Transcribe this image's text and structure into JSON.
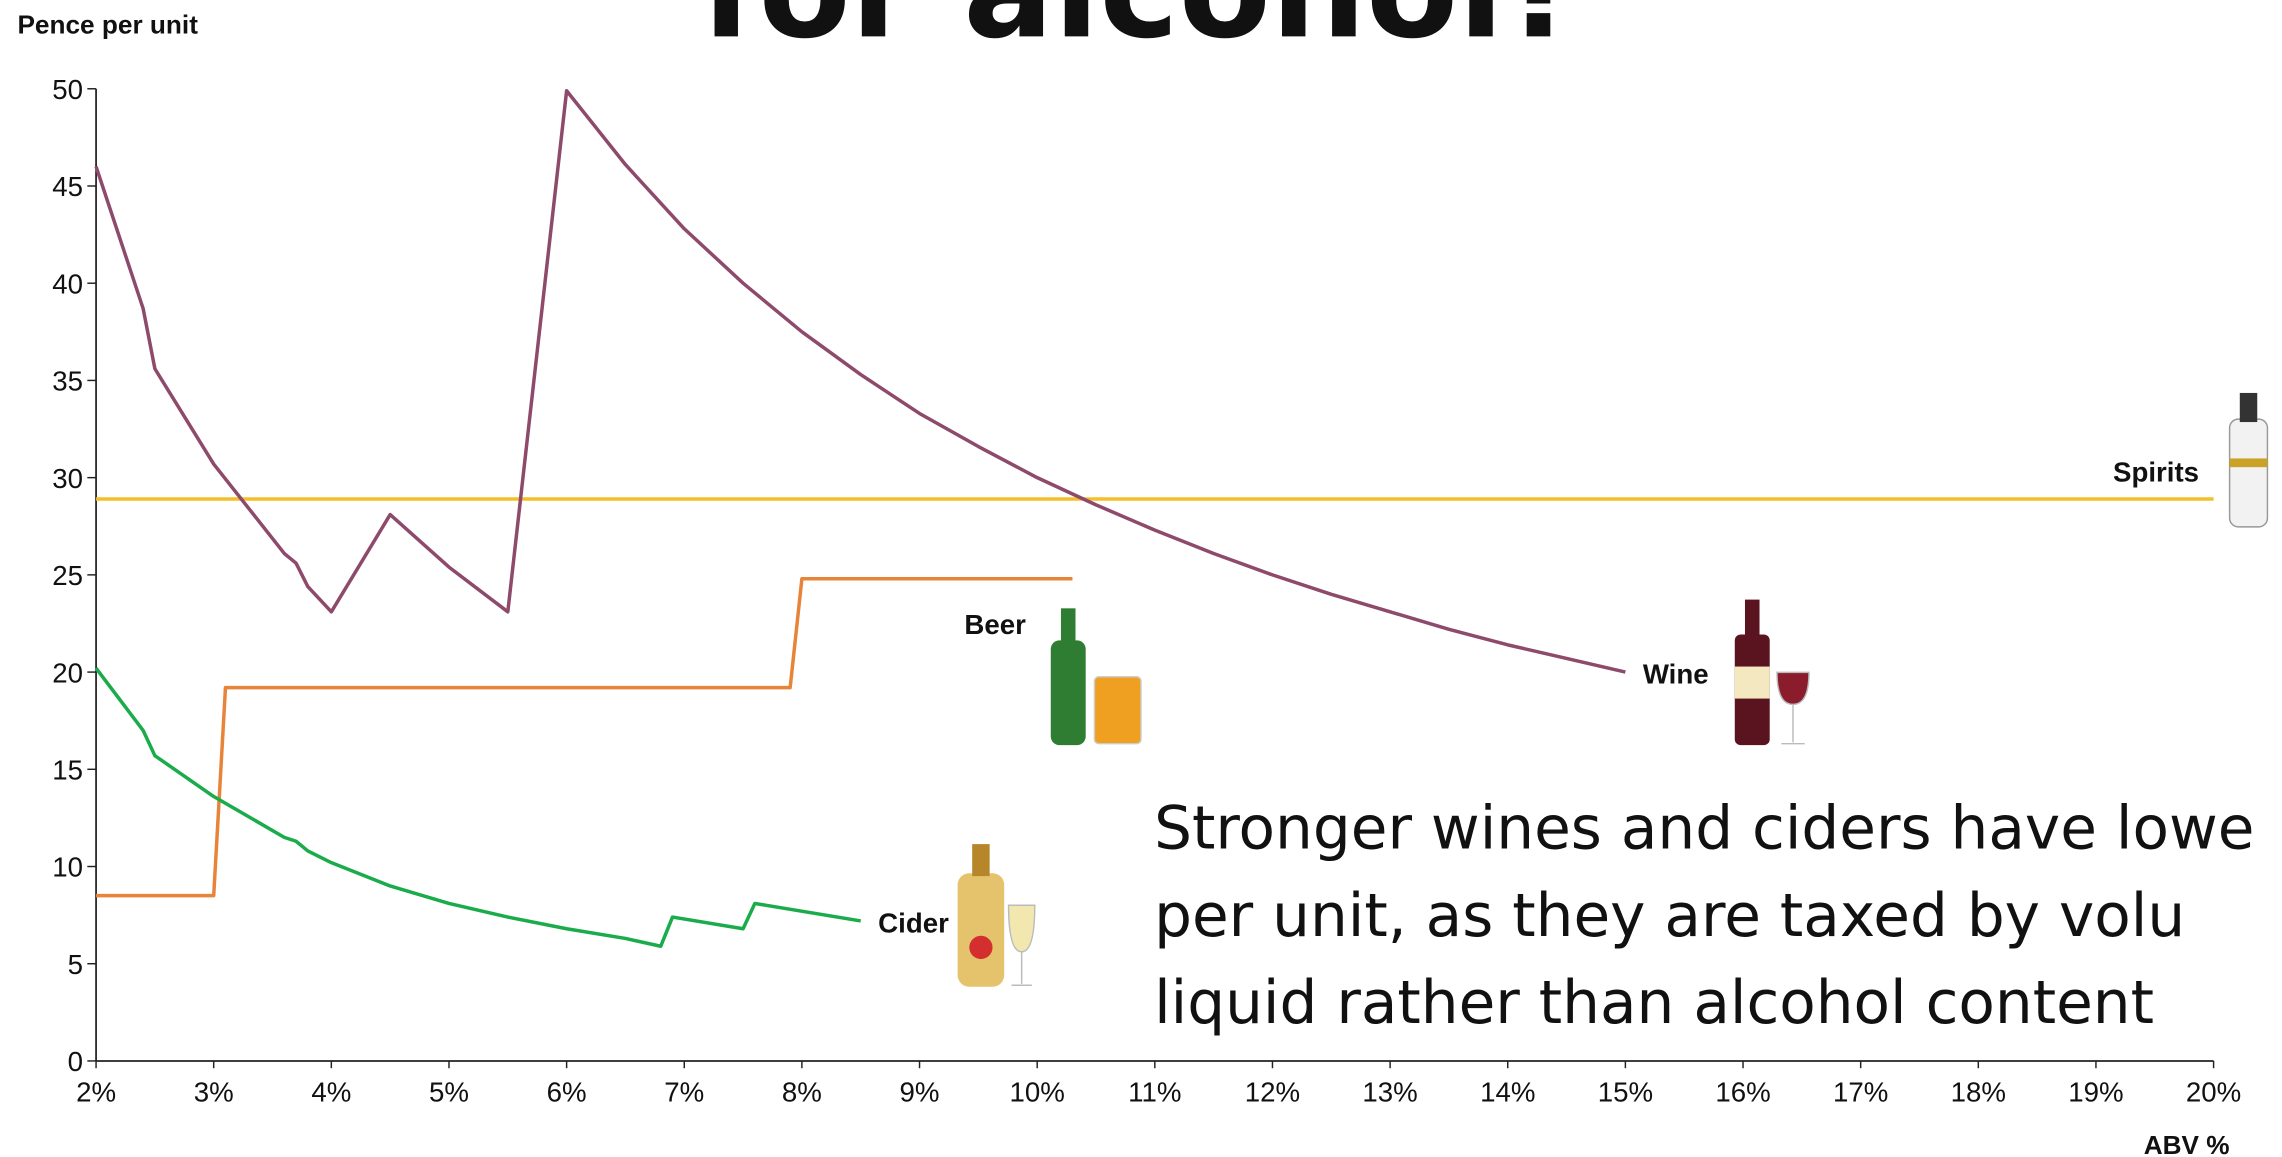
{
  "chart_data": {
    "type": "line",
    "title": "for alcohol?",
    "y_label": "Pence per unit",
    "x_label": "ABV %",
    "annotation": [
      "Stronger wines and ciders have lowe",
      "per unit, as they are taxed by volu",
      "liquid rather than alcohol content"
    ],
    "xlim": [
      2,
      20
    ],
    "ylim": [
      0,
      50
    ],
    "xticks": [
      {
        "value": 2,
        "label": "2%"
      },
      {
        "value": 3,
        "label": "3%"
      },
      {
        "value": 4,
        "label": "4%"
      },
      {
        "value": 5,
        "label": "5%"
      },
      {
        "value": 6,
        "label": "6%"
      },
      {
        "value": 7,
        "label": "7%"
      },
      {
        "value": 8,
        "label": "8%"
      },
      {
        "value": 9,
        "label": "9%"
      },
      {
        "value": 10,
        "label": "10%"
      },
      {
        "value": 11,
        "label": "11%"
      },
      {
        "value": 12,
        "label": "12%"
      },
      {
        "value": 13,
        "label": "13%"
      },
      {
        "value": 14,
        "label": "14%"
      },
      {
        "value": 15,
        "label": "15%"
      },
      {
        "value": 16,
        "label": "16%"
      },
      {
        "value": 17,
        "label": "17%"
      },
      {
        "value": 18,
        "label": "18%"
      },
      {
        "value": 19,
        "label": "19%"
      },
      {
        "value": 20,
        "label": "20%"
      }
    ],
    "yticks": [
      0,
      5,
      10,
      15,
      20,
      25,
      30,
      35,
      40,
      45,
      50
    ],
    "grid": false,
    "series": [
      {
        "name": "Spirits",
        "color": "#f4bf2a",
        "x": [
          2,
          20
        ],
        "values": [
          28.9,
          28.9
        ]
      },
      {
        "name": "Wine",
        "color": "#8e4a6b",
        "x": [
          2,
          2.4,
          2.5,
          3,
          3.6,
          3.7,
          3.8,
          4,
          4.5,
          5,
          5.5,
          6,
          6.5,
          7,
          7.5,
          8,
          8.5,
          9,
          9.5,
          10,
          10.5,
          11,
          11.5,
          12,
          12.5,
          13,
          13.5,
          14,
          14.5,
          15
        ],
        "values": [
          46,
          38.7,
          35.6,
          30.7,
          26.1,
          25.6,
          24.4,
          23.1,
          28.1,
          25.4,
          23.1,
          49.9,
          46.1,
          42.8,
          40,
          37.5,
          35.3,
          33.3,
          31.6,
          30,
          28.6,
          27.3,
          26.1,
          25,
          24,
          23.1,
          22.2,
          21.4,
          20.7,
          20
        ]
      },
      {
        "name": "Beer",
        "color": "#e8843a",
        "x": [
          2,
          3,
          3.1,
          7.9,
          8,
          10.3
        ],
        "values": [
          8.5,
          8.5,
          19.2,
          19.2,
          24.8,
          24.8
        ]
      },
      {
        "name": "Cider",
        "color": "#1aab4a",
        "x": [
          2,
          2.4,
          2.5,
          3,
          3.6,
          3.7,
          3.8,
          4,
          4.5,
          5,
          5.5,
          6,
          6.5,
          6.8,
          6.9,
          7.5,
          7.6,
          8.5
        ],
        "values": [
          20.2,
          17,
          15.7,
          13.6,
          11.5,
          11.3,
          10.8,
          10.2,
          9,
          8.1,
          7.4,
          6.8,
          6.3,
          5.9,
          7.4,
          6.8,
          8.1,
          7.2
        ]
      }
    ]
  }
}
